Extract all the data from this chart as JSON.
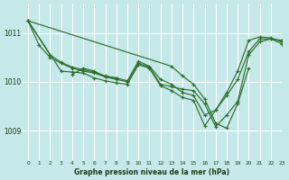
{
  "title": "Graphe pression niveau de la mer (hPa)",
  "bg_color": "#c5e8e8",
  "grid_color": "#ffffff",
  "line_color": "#2d6e2d",
  "xlim": [
    -0.5,
    23
  ],
  "ylim": [
    1008.4,
    1011.6
  ],
  "yticks": [
    1009,
    1010,
    1011
  ],
  "xticks": [
    0,
    1,
    2,
    3,
    4,
    5,
    6,
    7,
    8,
    9,
    10,
    11,
    12,
    13,
    14,
    15,
    16,
    17,
    18,
    19,
    20,
    21,
    22,
    23
  ],
  "series": [
    {
      "x": [
        0,
        1,
        2,
        3,
        4,
        5,
        6,
        7,
        8,
        9,
        10,
        11,
        12,
        13,
        14,
        15,
        16,
        17,
        18,
        19,
        20,
        21,
        22,
        23
      ],
      "y": [
        1011.25,
        1010.75,
        1010.5,
        1010.38,
        1010.28,
        1010.22,
        1010.18,
        1010.1,
        1010.05,
        1010.0,
        1010.38,
        1010.3,
        1009.95,
        1009.9,
        1009.85,
        1009.82,
        1009.55,
        1009.08,
        1009.32,
        1009.6,
        1010.55,
        1010.82,
        1010.88,
        1010.85
      ]
    },
    {
      "x": [
        0,
        2,
        3,
        4,
        5,
        6,
        7,
        8,
        9,
        10,
        11,
        12,
        13,
        14,
        15,
        16,
        17,
        18,
        19,
        20,
        21,
        22,
        23
      ],
      "y": [
        1011.25,
        1010.55,
        1010.4,
        1010.3,
        1010.25,
        1010.2,
        1010.12,
        1010.08,
        1010.02,
        1010.42,
        1010.32,
        1010.05,
        1009.95,
        1009.78,
        1009.72,
        1009.32,
        1009.42,
        1009.78,
        1010.22,
        1010.85,
        1010.92,
        1010.9,
        1010.82
      ]
    },
    {
      "x": [
        0,
        3,
        4,
        5,
        6,
        7,
        8,
        9,
        10,
        11,
        12,
        13,
        14,
        15,
        16,
        17,
        18,
        19,
        20,
        21,
        22,
        23
      ],
      "y": [
        1011.25,
        1010.22,
        1010.2,
        1010.18,
        1010.08,
        1010.02,
        1009.98,
        1009.95,
        1010.35,
        1010.28,
        1009.92,
        1009.82,
        1009.68,
        1009.62,
        1009.1,
        1009.42,
        1009.72,
        1010.05,
        1010.62,
        1010.88,
        1010.88,
        1010.78
      ]
    },
    {
      "x": [
        4,
        5,
        6,
        7,
        8
      ],
      "y": [
        1010.15,
        1010.28,
        1010.22,
        1010.1,
        1010.08
      ]
    },
    {
      "x": [
        0,
        13,
        14,
        15,
        16,
        17,
        18,
        19,
        20
      ],
      "y": [
        1011.25,
        1010.32,
        1010.12,
        1009.95,
        1009.65,
        1009.15,
        1009.05,
        1009.55,
        1010.28
      ]
    }
  ]
}
